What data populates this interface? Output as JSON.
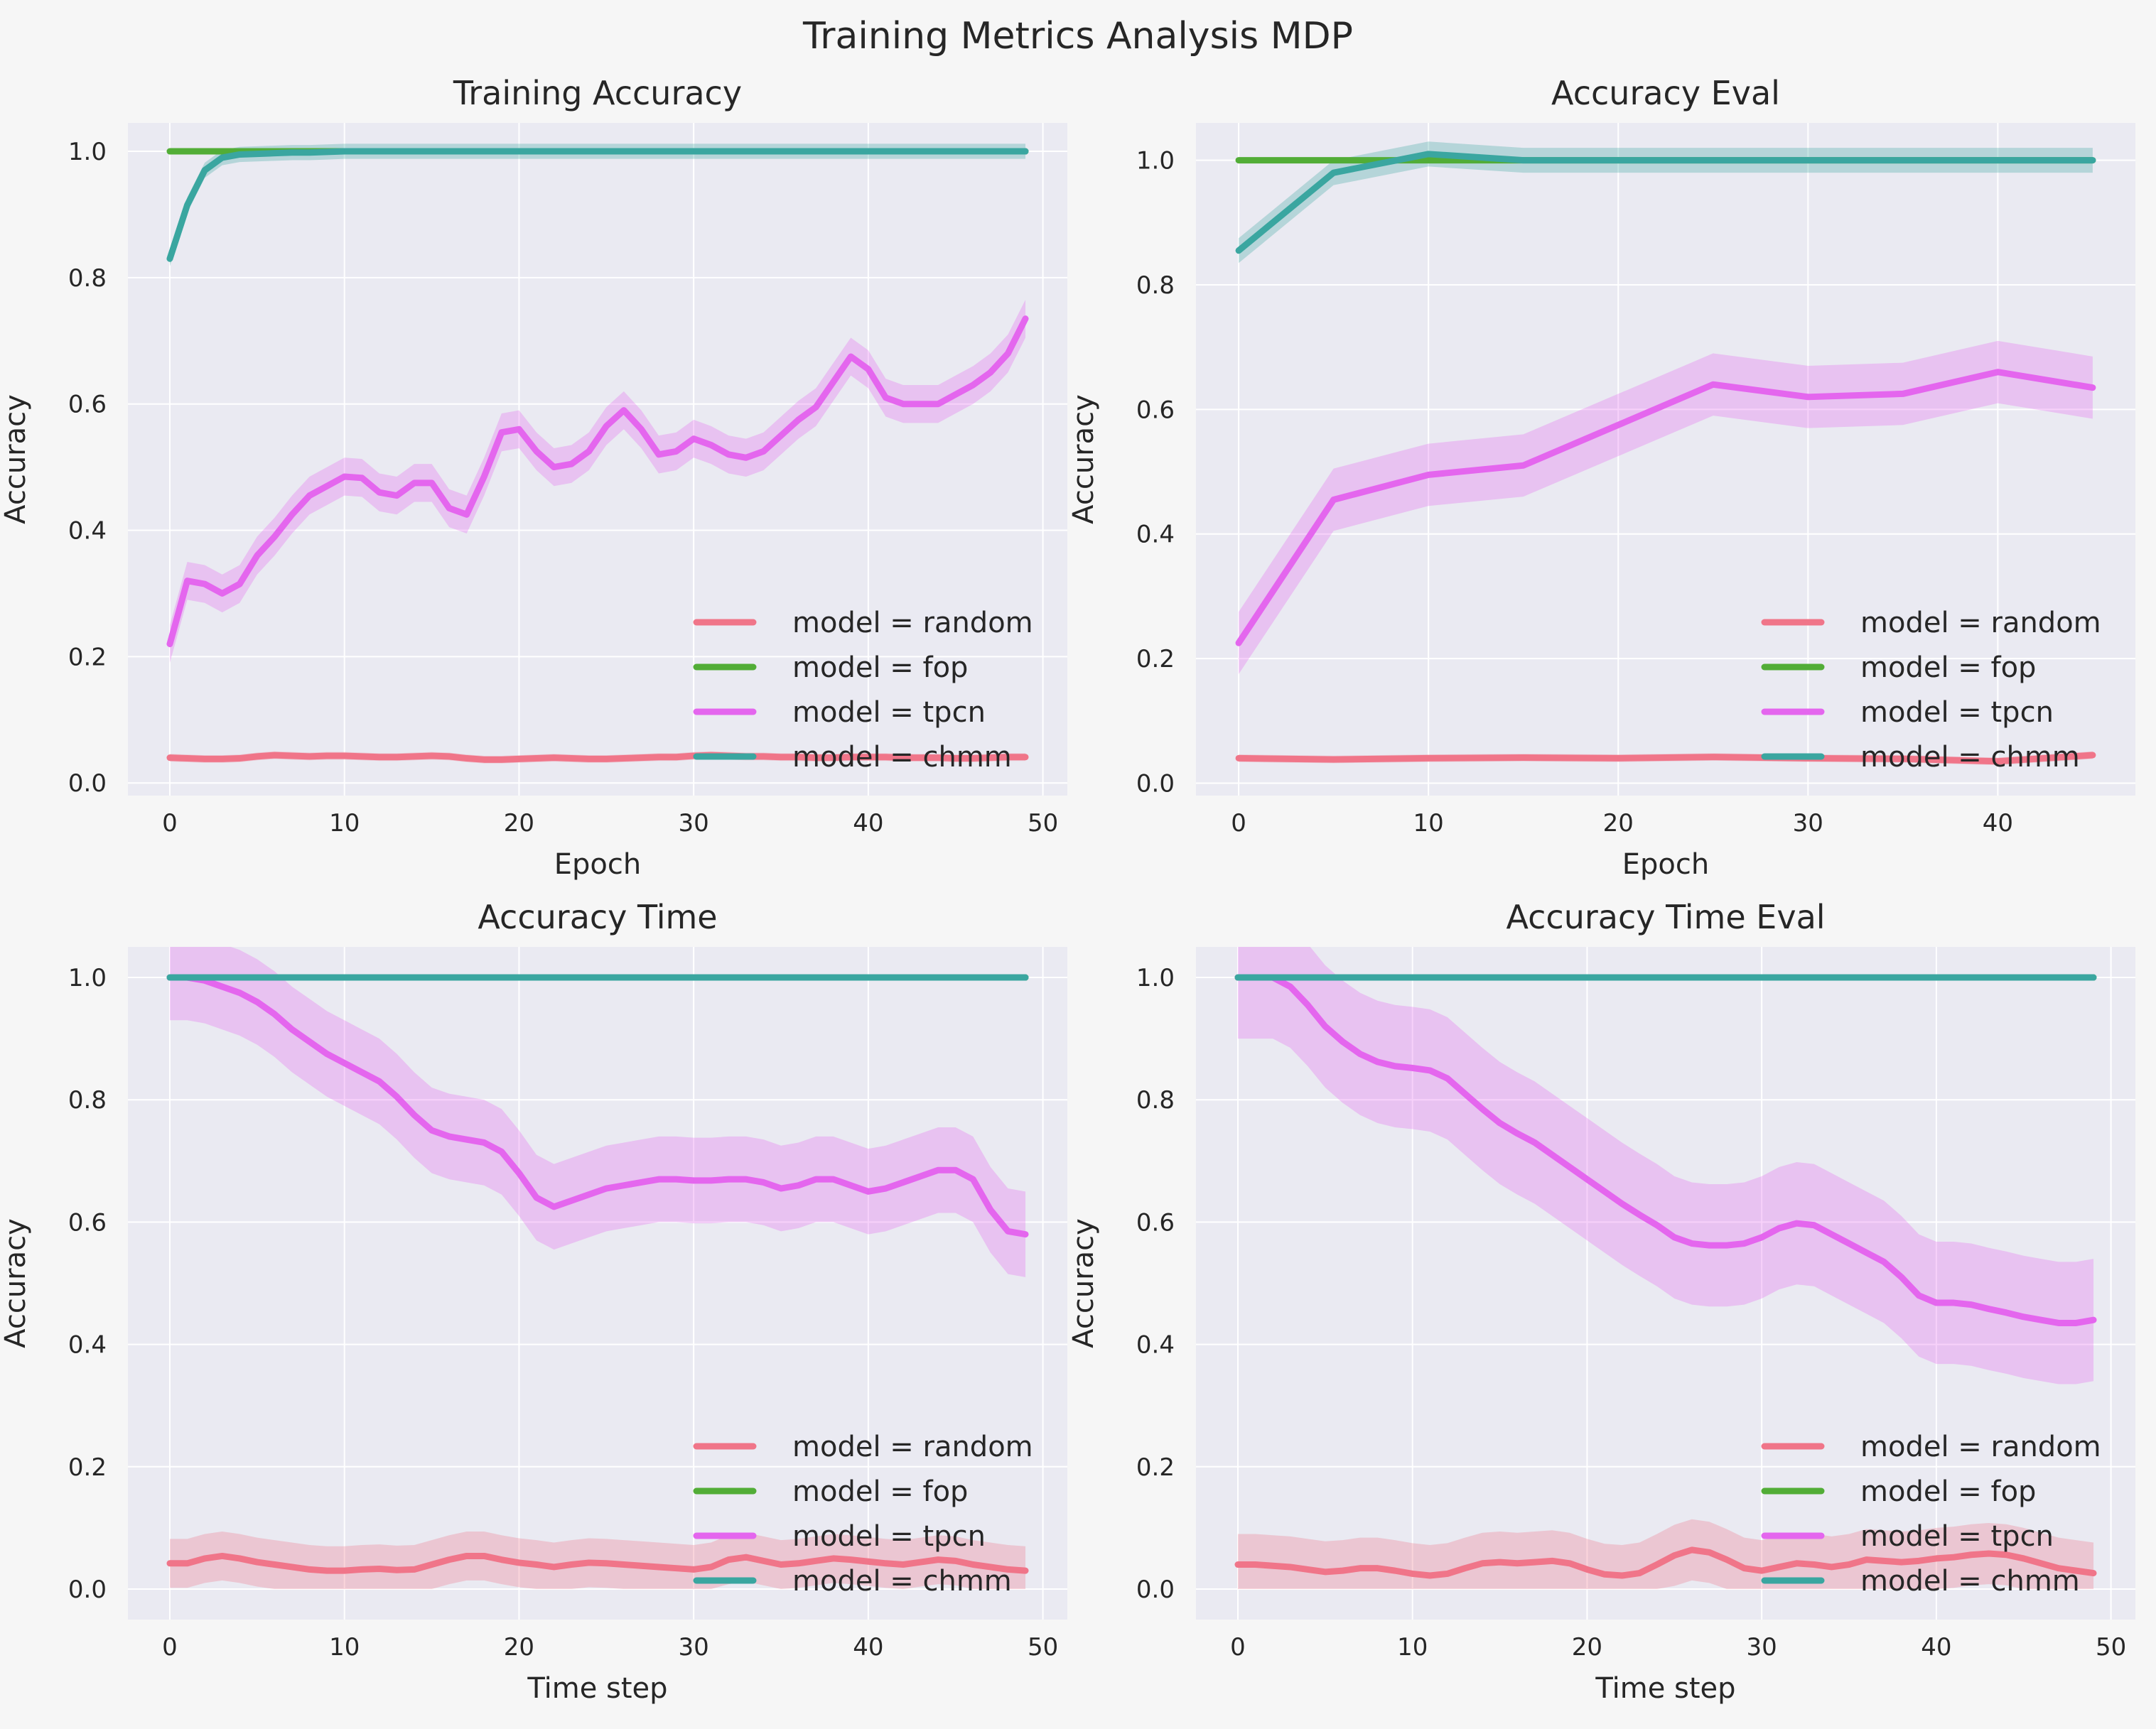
{
  "suptitle": "Training Metrics Analysis MDP",
  "legend_prefix": "model = ",
  "series_colors": {
    "random": "#f07589",
    "fop": "#52ad37",
    "tpcn": "#e466ee",
    "chmm": "#3aa6a0"
  },
  "chart_data": [
    {
      "type": "line",
      "title": "Training Accuracy",
      "xlabel": "Epoch",
      "ylabel": "Accuracy",
      "xlim": [
        -2.4,
        51.4
      ],
      "ylim": [
        -0.02,
        1.045
      ],
      "xticks": [
        0,
        10,
        20,
        30,
        40,
        50
      ],
      "yticks": [
        0.0,
        0.2,
        0.4,
        0.6,
        0.8,
        1.0
      ],
      "grid": true,
      "legend": "lower-right",
      "x": [
        0,
        1,
        2,
        3,
        4,
        5,
        6,
        7,
        8,
        9,
        10,
        11,
        12,
        13,
        14,
        15,
        16,
        17,
        18,
        19,
        20,
        21,
        22,
        23,
        24,
        25,
        26,
        27,
        28,
        29,
        30,
        31,
        32,
        33,
        34,
        35,
        36,
        37,
        38,
        39,
        40,
        41,
        42,
        43,
        44,
        45,
        46,
        47,
        48,
        49
      ],
      "series": [
        {
          "name": "random",
          "values": [
            0.04,
            0.039,
            0.038,
            0.038,
            0.039,
            0.042,
            0.044,
            0.043,
            0.042,
            0.043,
            0.043,
            0.042,
            0.041,
            0.041,
            0.042,
            0.043,
            0.042,
            0.039,
            0.037,
            0.037,
            0.038,
            0.039,
            0.04,
            0.039,
            0.038,
            0.038,
            0.039,
            0.04,
            0.041,
            0.041,
            0.043,
            0.044,
            0.043,
            0.042,
            0.042,
            0.041,
            0.041,
            0.04,
            0.04,
            0.041,
            0.041,
            0.041,
            0.04,
            0.04,
            0.04,
            0.039,
            0.039,
            0.04,
            0.041,
            0.041
          ],
          "band": 0.006
        },
        {
          "name": "fop",
          "values": [
            1.0,
            1.0,
            1.0,
            1.0,
            1.0,
            1.0,
            1.0,
            1.0,
            1.0,
            1.0,
            1.0,
            1.0,
            1.0,
            1.0,
            1.0,
            1.0,
            1.0,
            1.0,
            1.0,
            1.0,
            1.0,
            1.0,
            1.0,
            1.0,
            1.0,
            1.0,
            1.0,
            1.0,
            1.0,
            1.0,
            1.0,
            1.0,
            1.0,
            1.0,
            1.0,
            1.0,
            1.0,
            1.0,
            1.0,
            1.0,
            1.0,
            1.0,
            1.0,
            1.0,
            1.0,
            1.0,
            1.0,
            1.0,
            1.0,
            1.0
          ],
          "band": 0.0
        },
        {
          "name": "tpcn",
          "values": [
            0.22,
            0.32,
            0.315,
            0.3,
            0.315,
            0.36,
            0.39,
            0.425,
            0.455,
            0.47,
            0.485,
            0.483,
            0.46,
            0.455,
            0.475,
            0.475,
            0.435,
            0.425,
            0.485,
            0.555,
            0.56,
            0.525,
            0.5,
            0.505,
            0.525,
            0.565,
            0.59,
            0.56,
            0.52,
            0.525,
            0.545,
            0.535,
            0.52,
            0.515,
            0.525,
            0.55,
            0.575,
            0.595,
            0.635,
            0.675,
            0.655,
            0.61,
            0.6,
            0.6,
            0.6,
            0.615,
            0.63,
            0.65,
            0.68,
            0.735
          ],
          "band": 0.03
        },
        {
          "name": "chmm",
          "values": [
            0.83,
            0.915,
            0.97,
            0.99,
            0.995,
            0.996,
            0.997,
            0.998,
            0.998,
            0.999,
            1.0,
            1.0,
            1.0,
            1.0,
            1.0,
            1.0,
            1.0,
            1.0,
            1.0,
            1.0,
            1.0,
            1.0,
            1.0,
            1.0,
            1.0,
            1.0,
            1.0,
            1.0,
            1.0,
            1.0,
            1.0,
            1.0,
            1.0,
            1.0,
            1.0,
            1.0,
            1.0,
            1.0,
            1.0,
            1.0,
            1.0,
            1.0,
            1.0,
            1.0,
            1.0,
            1.0,
            1.0,
            1.0,
            1.0,
            1.0
          ],
          "band": 0.012
        }
      ]
    },
    {
      "type": "line",
      "title": "Accuracy Eval",
      "xlabel": "Epoch",
      "ylabel": "Accuracy",
      "xlim": [
        -2.25,
        47.25
      ],
      "ylim": [
        -0.02,
        1.06
      ],
      "xticks": [
        0,
        10,
        20,
        30,
        40
      ],
      "yticks": [
        0.0,
        0.2,
        0.4,
        0.6,
        0.8,
        1.0
      ],
      "grid": true,
      "legend": "lower-right",
      "x": [
        0,
        5,
        10,
        15,
        20,
        25,
        30,
        35,
        40,
        45
      ],
      "series": [
        {
          "name": "random",
          "values": [
            0.04,
            0.038,
            0.04,
            0.041,
            0.04,
            0.042,
            0.04,
            0.039,
            0.035,
            0.045
          ],
          "band": 0.006
        },
        {
          "name": "fop",
          "values": [
            1.0,
            1.0,
            1.0,
            1.0,
            1.0,
            1.0,
            1.0,
            1.0,
            1.0,
            1.0
          ],
          "band": 0.0
        },
        {
          "name": "tpcn",
          "values": [
            0.225,
            0.455,
            0.495,
            0.51,
            0.575,
            0.64,
            0.62,
            0.625,
            0.66,
            0.635
          ],
          "band": 0.05
        },
        {
          "name": "chmm",
          "values": [
            0.855,
            0.98,
            1.01,
            1.0,
            1.0,
            1.0,
            1.0,
            1.0,
            1.0,
            1.0
          ],
          "band": 0.02
        }
      ]
    },
    {
      "type": "line",
      "title": "Accuracy Time",
      "xlabel": "Time step",
      "ylabel": "Accuracy",
      "xlim": [
        -2.4,
        51.4
      ],
      "ylim": [
        -0.05,
        1.05
      ],
      "xticks": [
        0,
        10,
        20,
        30,
        40,
        50
      ],
      "yticks": [
        0.0,
        0.2,
        0.4,
        0.6,
        0.8,
        1.0
      ],
      "grid": true,
      "legend": "lower-right",
      "x": [
        0,
        1,
        2,
        3,
        4,
        5,
        6,
        7,
        8,
        9,
        10,
        11,
        12,
        13,
        14,
        15,
        16,
        17,
        18,
        19,
        20,
        21,
        22,
        23,
        24,
        25,
        26,
        27,
        28,
        29,
        30,
        31,
        32,
        33,
        34,
        35,
        36,
        37,
        38,
        39,
        40,
        41,
        42,
        43,
        44,
        45,
        46,
        47,
        48,
        49
      ],
      "series": [
        {
          "name": "random",
          "values": [
            0.042,
            0.042,
            0.05,
            0.054,
            0.05,
            0.044,
            0.04,
            0.036,
            0.032,
            0.03,
            0.03,
            0.032,
            0.033,
            0.031,
            0.032,
            0.04,
            0.048,
            0.054,
            0.054,
            0.048,
            0.043,
            0.04,
            0.036,
            0.04,
            0.043,
            0.042,
            0.04,
            0.038,
            0.036,
            0.034,
            0.032,
            0.036,
            0.048,
            0.052,
            0.046,
            0.04,
            0.042,
            0.046,
            0.05,
            0.048,
            0.045,
            0.042,
            0.04,
            0.044,
            0.048,
            0.046,
            0.04,
            0.036,
            0.032,
            0.03
          ],
          "band": 0.04
        },
        {
          "name": "fop",
          "values": [
            1.0,
            1.0,
            1.0,
            1.0,
            1.0,
            1.0,
            1.0,
            1.0,
            1.0,
            1.0,
            1.0,
            1.0,
            1.0,
            1.0,
            1.0,
            1.0,
            1.0,
            1.0,
            1.0,
            1.0,
            1.0,
            1.0,
            1.0,
            1.0,
            1.0,
            1.0,
            1.0,
            1.0,
            1.0,
            1.0,
            1.0,
            1.0,
            1.0,
            1.0,
            1.0,
            1.0,
            1.0,
            1.0,
            1.0,
            1.0,
            1.0,
            1.0,
            1.0,
            1.0,
            1.0,
            1.0,
            1.0,
            1.0,
            1.0,
            1.0
          ],
          "band": 0.0
        },
        {
          "name": "tpcn",
          "values": [
            1.0,
            1.0,
            0.995,
            0.985,
            0.975,
            0.96,
            0.94,
            0.915,
            0.895,
            0.875,
            0.86,
            0.845,
            0.83,
            0.805,
            0.775,
            0.75,
            0.74,
            0.735,
            0.73,
            0.715,
            0.68,
            0.64,
            0.625,
            0.635,
            0.645,
            0.655,
            0.66,
            0.665,
            0.67,
            0.67,
            0.668,
            0.668,
            0.67,
            0.67,
            0.665,
            0.655,
            0.66,
            0.67,
            0.67,
            0.66,
            0.65,
            0.655,
            0.665,
            0.675,
            0.685,
            0.685,
            0.67,
            0.62,
            0.585,
            0.58
          ],
          "band": 0.07
        },
        {
          "name": "chmm",
          "values": [
            1.0,
            1.0,
            1.0,
            1.0,
            1.0,
            1.0,
            1.0,
            1.0,
            1.0,
            1.0,
            1.0,
            1.0,
            1.0,
            1.0,
            1.0,
            1.0,
            1.0,
            1.0,
            1.0,
            1.0,
            1.0,
            1.0,
            1.0,
            1.0,
            1.0,
            1.0,
            1.0,
            1.0,
            1.0,
            1.0,
            1.0,
            1.0,
            1.0,
            1.0,
            1.0,
            1.0,
            1.0,
            1.0,
            1.0,
            1.0,
            1.0,
            1.0,
            1.0,
            1.0,
            1.0,
            1.0,
            1.0,
            1.0,
            1.0,
            1.0
          ],
          "band": 0.0
        }
      ]
    },
    {
      "type": "line",
      "title": "Accuracy Time Eval",
      "xlabel": "Time step",
      "ylabel": "Accuracy",
      "xlim": [
        -2.4,
        51.4
      ],
      "ylim": [
        -0.05,
        1.05
      ],
      "xticks": [
        0,
        10,
        20,
        30,
        40,
        50
      ],
      "yticks": [
        0.0,
        0.2,
        0.4,
        0.6,
        0.8,
        1.0
      ],
      "grid": true,
      "legend": "lower-right",
      "x": [
        0,
        1,
        2,
        3,
        4,
        5,
        6,
        7,
        8,
        9,
        10,
        11,
        12,
        13,
        14,
        15,
        16,
        17,
        18,
        19,
        20,
        21,
        22,
        23,
        24,
        25,
        26,
        27,
        28,
        29,
        30,
        31,
        32,
        33,
        34,
        35,
        36,
        37,
        38,
        39,
        40,
        41,
        42,
        43,
        44,
        45,
        46,
        47,
        48,
        49
      ],
      "series": [
        {
          "name": "random",
          "values": [
            0.04,
            0.04,
            0.038,
            0.036,
            0.032,
            0.028,
            0.03,
            0.034,
            0.034,
            0.03,
            0.025,
            0.022,
            0.025,
            0.034,
            0.042,
            0.044,
            0.042,
            0.044,
            0.046,
            0.042,
            0.032,
            0.024,
            0.022,
            0.026,
            0.04,
            0.055,
            0.064,
            0.06,
            0.048,
            0.034,
            0.03,
            0.036,
            0.042,
            0.04,
            0.036,
            0.04,
            0.048,
            0.046,
            0.044,
            0.046,
            0.05,
            0.052,
            0.056,
            0.058,
            0.056,
            0.05,
            0.042,
            0.034,
            0.03,
            0.026
          ],
          "band": 0.05
        },
        {
          "name": "fop",
          "values": [
            1.0,
            1.0,
            1.0,
            1.0,
            1.0,
            1.0,
            1.0,
            1.0,
            1.0,
            1.0,
            1.0,
            1.0,
            1.0,
            1.0,
            1.0,
            1.0,
            1.0,
            1.0,
            1.0,
            1.0,
            1.0,
            1.0,
            1.0,
            1.0,
            1.0,
            1.0,
            1.0,
            1.0,
            1.0,
            1.0,
            1.0,
            1.0,
            1.0,
            1.0,
            1.0,
            1.0,
            1.0,
            1.0,
            1.0,
            1.0,
            1.0,
            1.0,
            1.0,
            1.0,
            1.0,
            1.0,
            1.0,
            1.0,
            1.0,
            1.0
          ],
          "band": 0.0
        },
        {
          "name": "tpcn",
          "values": [
            1.0,
            1.0,
            1.0,
            0.985,
            0.955,
            0.92,
            0.895,
            0.875,
            0.862,
            0.855,
            0.852,
            0.848,
            0.835,
            0.81,
            0.785,
            0.762,
            0.745,
            0.73,
            0.71,
            0.69,
            0.67,
            0.65,
            0.63,
            0.612,
            0.595,
            0.575,
            0.565,
            0.562,
            0.562,
            0.565,
            0.575,
            0.59,
            0.598,
            0.595,
            0.58,
            0.565,
            0.55,
            0.535,
            0.51,
            0.48,
            0.468,
            0.468,
            0.465,
            0.458,
            0.452,
            0.445,
            0.44,
            0.435,
            0.435,
            0.44
          ],
          "band": 0.1
        },
        {
          "name": "chmm",
          "values": [
            1.0,
            1.0,
            1.0,
            1.0,
            1.0,
            1.0,
            1.0,
            1.0,
            1.0,
            1.0,
            1.0,
            1.0,
            1.0,
            1.0,
            1.0,
            1.0,
            1.0,
            1.0,
            1.0,
            1.0,
            1.0,
            1.0,
            1.0,
            1.0,
            1.0,
            1.0,
            1.0,
            1.0,
            1.0,
            1.0,
            1.0,
            1.0,
            1.0,
            1.0,
            1.0,
            1.0,
            1.0,
            1.0,
            1.0,
            1.0,
            1.0,
            1.0,
            1.0,
            1.0,
            1.0,
            1.0,
            1.0,
            1.0,
            1.0,
            1.0
          ],
          "band": 0.0
        }
      ]
    }
  ]
}
